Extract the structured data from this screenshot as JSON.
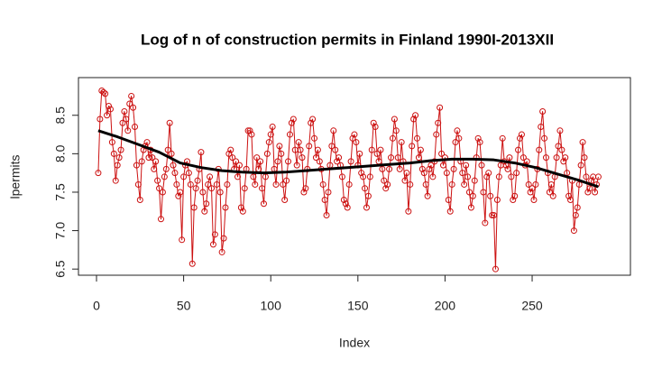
{
  "chart_data": {
    "type": "line",
    "title": "Log of n of construction permits in Finland 1990I-2013XII",
    "x_label": "Index",
    "y_label": "lpermits",
    "xlim": [
      -10.35,
      306.4
    ],
    "ylim": [
      6.42,
      8.99
    ],
    "xticks": [
      0,
      50,
      100,
      150,
      200,
      250
    ],
    "yticks": [
      6.5,
      {
        "value": 7,
        "label": "7.0"
      },
      7.5,
      {
        "value": 8,
        "label": "8.0"
      },
      8.5
    ],
    "series": [
      {
        "color": "#cc1111",
        "markers": true,
        "x": [
          1,
          2,
          3,
          4,
          5,
          6,
          7,
          8,
          9,
          10,
          11,
          12,
          13,
          14,
          15,
          16,
          17,
          18,
          19,
          20,
          21,
          22,
          23,
          24,
          25,
          26,
          27,
          28,
          29,
          30,
          31,
          32,
          33,
          34,
          35,
          36,
          37,
          38,
          39,
          40,
          41,
          42,
          43,
          44,
          45,
          46,
          47,
          48,
          49,
          50,
          51,
          52,
          53,
          54,
          55,
          56,
          57,
          58,
          59,
          60,
          61,
          62,
          63,
          64,
          65,
          66,
          67,
          68,
          69,
          70,
          71,
          72,
          73,
          74,
          75,
          76,
          77,
          78,
          79,
          80,
          81,
          82,
          83,
          84,
          85,
          86,
          87,
          88,
          89,
          90,
          91,
          92,
          93,
          94,
          95,
          96,
          97,
          98,
          99,
          100,
          101,
          102,
          103,
          104,
          105,
          106,
          107,
          108,
          109,
          110,
          111,
          112,
          113,
          114,
          115,
          116,
          117,
          118,
          119,
          120,
          121,
          122,
          123,
          124,
          125,
          126,
          127,
          128,
          129,
          130,
          131,
          132,
          133,
          134,
          135,
          136,
          137,
          138,
          139,
          140,
          141,
          142,
          143,
          144,
          145,
          146,
          147,
          148,
          149,
          150,
          151,
          152,
          153,
          154,
          155,
          156,
          157,
          158,
          159,
          160,
          161,
          162,
          163,
          164,
          165,
          166,
          167,
          168,
          169,
          170,
          171,
          172,
          173,
          174,
          175,
          176,
          177,
          178,
          179,
          180,
          181,
          182,
          183,
          184,
          185,
          186,
          187,
          188,
          189,
          190,
          191,
          192,
          193,
          194,
          195,
          196,
          197,
          198,
          199,
          200,
          201,
          202,
          203,
          204,
          205,
          206,
          207,
          208,
          209,
          210,
          211,
          212,
          213,
          214,
          215,
          216,
          217,
          218,
          219,
          220,
          221,
          222,
          223,
          224,
          225,
          226,
          227,
          228,
          229,
          230,
          231,
          232,
          233,
          234,
          235,
          236,
          237,
          238,
          239,
          240,
          241,
          242,
          243,
          244,
          245,
          246,
          247,
          248,
          249,
          250,
          251,
          252,
          253,
          254,
          255,
          256,
          257,
          258,
          259,
          260,
          261,
          262,
          263,
          264,
          265,
          266,
          267,
          268,
          269,
          270,
          271,
          272,
          273,
          274,
          275,
          276,
          277,
          278,
          279,
          280,
          281,
          282,
          283,
          284,
          285,
          286,
          287,
          288
        ],
        "values": [
          7.75,
          8.45,
          8.82,
          8.8,
          8.78,
          8.5,
          8.62,
          8.58,
          8.15,
          8.0,
          7.65,
          7.85,
          7.95,
          8.05,
          8.4,
          8.55,
          8.45,
          8.3,
          8.65,
          8.75,
          8.6,
          8.35,
          7.85,
          7.6,
          7.4,
          7.9,
          8.05,
          8.1,
          8.15,
          7.95,
          8.05,
          7.95,
          7.8,
          7.9,
          7.65,
          7.55,
          7.15,
          7.5,
          7.7,
          7.8,
          8.05,
          8.4,
          8.0,
          7.85,
          7.75,
          7.6,
          7.45,
          7.5,
          6.88,
          7.7,
          7.85,
          7.9,
          7.75,
          7.6,
          6.57,
          7.3,
          7.55,
          7.65,
          7.8,
          8.02,
          7.5,
          7.25,
          7.35,
          7.6,
          7.7,
          7.55,
          6.82,
          6.95,
          7.6,
          7.8,
          7.5,
          6.72,
          6.9,
          7.3,
          7.6,
          8.0,
          8.05,
          7.95,
          7.8,
          7.9,
          7.7,
          7.85,
          7.3,
          7.25,
          7.55,
          7.8,
          8.3,
          8.3,
          8.25,
          7.7,
          7.6,
          7.95,
          7.8,
          7.9,
          7.55,
          7.35,
          7.7,
          8.0,
          8.15,
          8.25,
          8.35,
          7.8,
          7.6,
          7.9,
          8.1,
          8.0,
          7.6,
          7.4,
          7.65,
          7.9,
          8.25,
          8.4,
          8.45,
          8.05,
          7.85,
          8.15,
          8.05,
          7.95,
          7.5,
          7.55,
          7.8,
          8.1,
          8.4,
          8.45,
          8.2,
          7.95,
          8.05,
          7.9,
          7.8,
          7.6,
          7.4,
          7.2,
          7.5,
          7.85,
          8.1,
          8.3,
          8.05,
          7.9,
          7.95,
          7.85,
          7.7,
          7.4,
          7.35,
          7.3,
          7.6,
          7.9,
          8.2,
          8.25,
          8.15,
          7.85,
          8.0,
          7.75,
          7.7,
          7.55,
          7.3,
          7.45,
          7.7,
          8.05,
          8.4,
          8.35,
          8.0,
          7.9,
          8.05,
          7.8,
          7.65,
          7.55,
          7.6,
          7.8,
          7.95,
          8.2,
          8.45,
          8.3,
          7.95,
          7.8,
          8.15,
          7.9,
          7.65,
          7.75,
          7.25,
          7.6,
          8.1,
          8.45,
          8.5,
          8.2,
          7.95,
          8.05,
          7.8,
          7.75,
          7.6,
          7.45,
          7.8,
          7.85,
          7.7,
          7.9,
          8.25,
          8.4,
          8.6,
          8.0,
          7.85,
          7.95,
          7.75,
          7.4,
          7.25,
          7.6,
          7.8,
          8.15,
          8.3,
          8.2,
          7.9,
          7.75,
          7.6,
          7.85,
          7.7,
          7.5,
          7.3,
          7.45,
          7.65,
          7.95,
          8.2,
          8.15,
          7.85,
          7.5,
          7.1,
          7.7,
          7.75,
          7.45,
          7.2,
          7.2,
          6.5,
          7.4,
          7.7,
          7.85,
          8.2,
          7.9,
          7.85,
          7.8,
          7.95,
          7.7,
          7.4,
          7.45,
          7.75,
          8.05,
          8.2,
          8.25,
          7.95,
          7.85,
          7.9,
          7.6,
          7.5,
          7.55,
          7.4,
          7.6,
          7.8,
          8.05,
          8.35,
          8.55,
          8.2,
          7.95,
          7.75,
          7.5,
          7.6,
          7.45,
          7.7,
          7.95,
          8.1,
          8.3,
          8.05,
          7.9,
          7.95,
          7.75,
          7.45,
          7.4,
          7.65,
          7.0,
          7.2,
          7.3,
          7.6,
          7.85,
          8.15,
          7.95,
          7.7,
          7.5,
          7.55,
          7.65,
          7.7,
          7.5,
          7.6,
          7.7
        ]
      },
      {
        "color": "#000000",
        "markers": false,
        "x": [
          1,
          12,
          24,
          36,
          48,
          60,
          72,
          84,
          96,
          108,
          120,
          132,
          144,
          156,
          168,
          180,
          192,
          204,
          216,
          228,
          240,
          252,
          264,
          276,
          288
        ],
        "values": [
          8.3,
          8.22,
          8.12,
          8.02,
          7.88,
          7.82,
          7.78,
          7.76,
          7.75,
          7.76,
          7.78,
          7.8,
          7.82,
          7.84,
          7.86,
          7.88,
          7.91,
          7.93,
          7.93,
          7.92,
          7.88,
          7.82,
          7.74,
          7.66,
          7.57
        ]
      }
    ]
  }
}
